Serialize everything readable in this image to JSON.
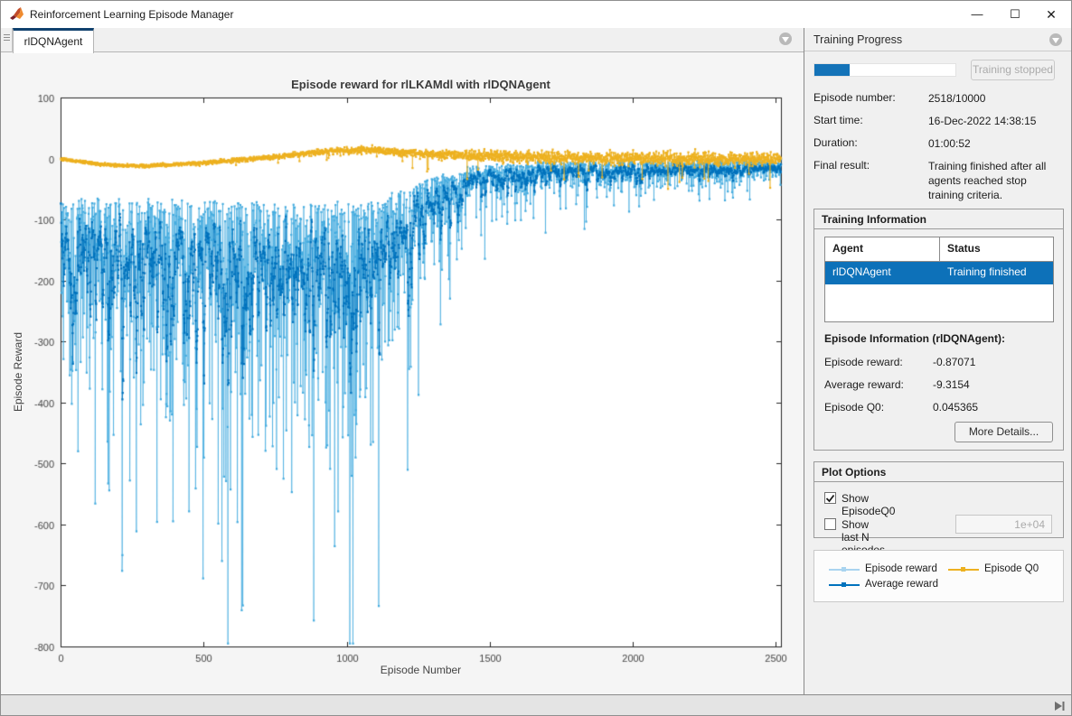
{
  "window": {
    "title": "Reinforcement Learning Episode Manager",
    "controls": {
      "minimize": "—",
      "maximize": "☐",
      "close": "✕"
    }
  },
  "tabs": [
    {
      "label": "rlDQNAgent",
      "active": true
    }
  ],
  "chart_data": {
    "type": "line",
    "title": "Episode reward for rlLKAMdl with rlDQNAgent",
    "xlabel": "Episode Number",
    "ylabel": "Episode Reward",
    "xlim": [
      0,
      2518
    ],
    "ylim": [
      -800,
      100
    ],
    "xticks": [
      0,
      500,
      1000,
      1500,
      2000,
      2500
    ],
    "yticks": [
      100,
      0,
      -100,
      -200,
      -300,
      -400,
      -500,
      -600,
      -700,
      -800
    ],
    "grid": false,
    "legend_position": "bottom-right-panel",
    "num_episodes": 2518,
    "seed": 7,
    "series": [
      {
        "name": "Episode reward",
        "color": "#45acdf",
        "top_envelope": [
          [
            1,
            -68
          ],
          [
            400,
            -70
          ],
          [
            1000,
            -74
          ],
          [
            1150,
            -60
          ],
          [
            1300,
            -32
          ],
          [
            1450,
            -15
          ],
          [
            1700,
            -8
          ],
          [
            2518,
            -5
          ]
        ],
        "spread_envelope": [
          [
            1,
            170
          ],
          [
            400,
            215
          ],
          [
            800,
            230
          ],
          [
            1050,
            215
          ],
          [
            1200,
            120
          ],
          [
            1350,
            60
          ],
          [
            1500,
            34
          ],
          [
            1800,
            24
          ],
          [
            2518,
            20
          ]
        ]
      },
      {
        "name": "Average reward",
        "color": "#0072BD",
        "derived": "moving_average",
        "window": 5
      },
      {
        "name": "Episode Q0",
        "color": "#EDB120",
        "envelope": [
          [
            1,
            -1
          ],
          [
            150,
            -10
          ],
          [
            300,
            -12
          ],
          [
            500,
            -7
          ],
          [
            750,
            3
          ],
          [
            950,
            13
          ],
          [
            1100,
            14
          ],
          [
            1300,
            7
          ],
          [
            1600,
            3
          ],
          [
            2000,
            1
          ],
          [
            2518,
            0
          ]
        ],
        "noise_envelope": [
          [
            1,
            2.5
          ],
          [
            600,
            4
          ],
          [
            1000,
            6
          ],
          [
            1400,
            10
          ],
          [
            1800,
            13
          ],
          [
            2518,
            13
          ]
        ],
        "spikes": {
          "start": 600,
          "prob": 0.03,
          "max_depth": [
            [
              600,
              12
            ],
            [
              1500,
              35
            ],
            [
              2518,
              50
            ]
          ]
        }
      }
    ],
    "final_values": {
      "episode_reward": -0.87071,
      "average_reward": -9.3154,
      "episode_q0": 0.045365
    }
  },
  "training_progress": {
    "header": "Training Progress",
    "progress_percent": 25.18,
    "stop_button_label": "Training stopped",
    "fields": [
      {
        "label": "Episode number:",
        "value": "2518/10000"
      },
      {
        "label": "Start time:",
        "value": "16-Dec-2022 14:38:15"
      },
      {
        "label": "Duration:",
        "value": "01:00:52"
      },
      {
        "label": "Final result:",
        "value": "Training finished after all agents reached stop training criteria."
      }
    ]
  },
  "training_information": {
    "header": "Training Information",
    "table": {
      "columns": [
        "Agent",
        "Status"
      ],
      "rows": [
        {
          "agent": "rlDQNAgent",
          "status": "Training finished",
          "selected": true
        }
      ]
    },
    "episode_info": {
      "header": "Episode Information (rlDQNAgent):",
      "fields": [
        {
          "label": "Episode reward:",
          "value": "-0.87071"
        },
        {
          "label": "Average reward:",
          "value": "-9.3154"
        },
        {
          "label": "Episode Q0:",
          "value": "0.045365"
        }
      ],
      "more_details_label": "More Details..."
    }
  },
  "plot_options": {
    "header": "Plot Options",
    "options": [
      {
        "label": "Show EpisodeQ0",
        "checked": true
      },
      {
        "label": "Show last N episodes",
        "checked": false,
        "input_value": "1e+04",
        "input_disabled": true
      }
    ]
  },
  "legend": {
    "entries": [
      {
        "label": "Episode reward",
        "color": "#a9d4f0"
      },
      {
        "label": "Average reward",
        "color": "#0072BD"
      },
      {
        "label": "Episode Q0",
        "color": "#EDB120"
      }
    ]
  },
  "colors": {
    "accent_blue": "#0072BD",
    "selection_blue": "#0d71b9",
    "progress_blue": "#1473b8",
    "tab_accent": "#10416e",
    "gold": "#EDB120",
    "light_blue": "#45acdf"
  }
}
